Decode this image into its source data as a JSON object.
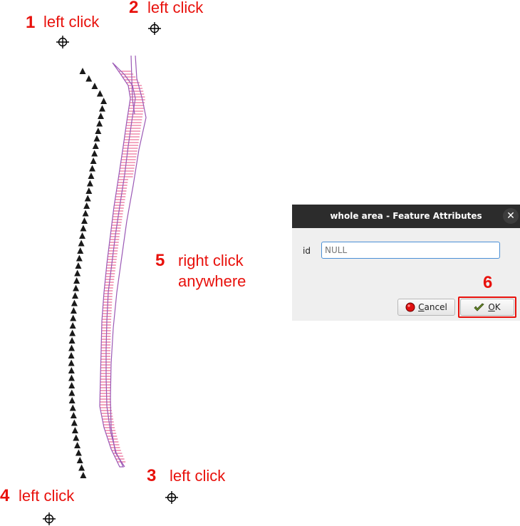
{
  "annotations": {
    "color": "#e8110c",
    "steps": [
      {
        "number": "1",
        "text": "left click"
      },
      {
        "number": "2",
        "text": "left click"
      },
      {
        "number": "3",
        "text": "left click"
      },
      {
        "number": "4",
        "text": "left click"
      },
      {
        "number": "5",
        "text_line1": "right click",
        "text_line2": "anywhere"
      },
      {
        "number": "6"
      }
    ]
  },
  "dialog": {
    "title": "whole area - Feature Attributes",
    "close_glyph": "✕",
    "field_label": "id",
    "field_placeholder": "NULL",
    "cancel_accel": "C",
    "cancel_rest": "ancel",
    "ok_accel": "O",
    "ok_rest": "K"
  },
  "colors": {
    "polygon_stroke": "#9b59b6",
    "hatch": "#e0185a",
    "triangle_fill": "#1a1a1a"
  }
}
